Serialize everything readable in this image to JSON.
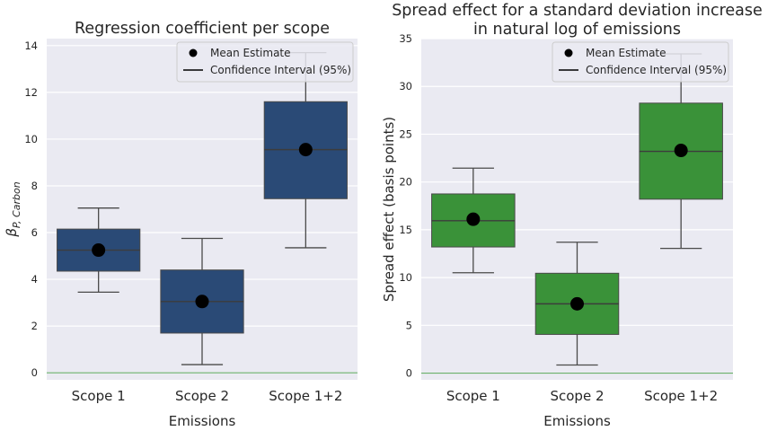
{
  "chart_data": [
    {
      "type": "box",
      "title": [
        "Regression coefficient per scope"
      ],
      "xlabel": "Emissions",
      "ylabel": "β",
      "ylabel_sub": "P, Carbon",
      "categories": [
        "Scope 1",
        "Scope 2",
        "Scope 1+2"
      ],
      "ylim": [
        -0.3,
        14.3
      ],
      "yticks": [
        0,
        2,
        4,
        6,
        8,
        10,
        12,
        14
      ],
      "box_color": "#2a4a76",
      "reference_line": 0,
      "reference_color": "#6ab06a",
      "boxes": [
        {
          "q1": 4.35,
          "median": 5.25,
          "q3": 6.15,
          "whisker_low": 3.45,
          "whisker_high": 7.05,
          "mean": 5.25
        },
        {
          "q1": 1.7,
          "median": 3.05,
          "q3": 4.4,
          "whisker_low": 0.35,
          "whisker_high": 5.75,
          "mean": 3.05
        },
        {
          "q1": 7.45,
          "median": 9.55,
          "q3": 11.6,
          "whisker_low": 5.35,
          "whisker_high": 13.7,
          "mean": 9.55
        }
      ],
      "legend": {
        "placement": "top-right",
        "entries": [
          "Mean Estimate",
          "Confidence Interval (95%)"
        ]
      },
      "grid": true
    },
    {
      "type": "box",
      "title": [
        "Spread effect for a standard deviation increase",
        "in natural log of emissions"
      ],
      "xlabel": "Emissions",
      "ylabel": "Spread effect (basis points)",
      "ylabel_sub": "",
      "categories": [
        "Scope 1",
        "Scope 2",
        "Scope 1+2"
      ],
      "ylim": [
        -0.7,
        35
      ],
      "yticks": [
        0,
        5,
        10,
        15,
        20,
        25,
        30,
        35
      ],
      "box_color": "#3a9239",
      "reference_line": 0,
      "reference_color": "#6ab06a",
      "boxes": [
        {
          "q1": 13.2,
          "median": 15.95,
          "q3": 18.75,
          "whisker_low": 10.5,
          "whisker_high": 21.45,
          "mean": 16.1
        },
        {
          "q1": 4.05,
          "median": 7.25,
          "q3": 10.45,
          "whisker_low": 0.85,
          "whisker_high": 13.7,
          "mean": 7.25
        },
        {
          "q1": 18.2,
          "median": 23.2,
          "q3": 28.25,
          "whisker_low": 13.05,
          "whisker_high": 33.4,
          "mean": 23.3
        }
      ],
      "legend": {
        "placement": "top-right",
        "entries": [
          "Mean Estimate",
          "Confidence Interval (95%)"
        ]
      },
      "grid": true
    }
  ]
}
